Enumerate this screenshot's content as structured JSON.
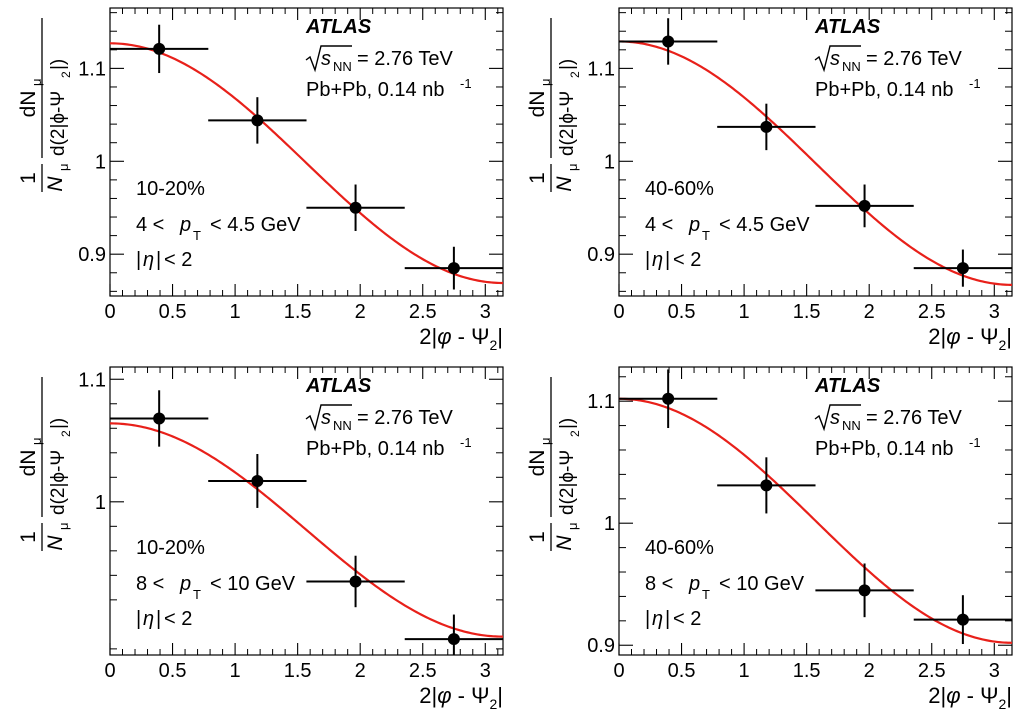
{
  "chart_data": [
    {
      "type": "scatter",
      "experiment": "ATLAS",
      "energy_label": "= 2.76 TeV",
      "energy_symbol_main": "s",
      "energy_symbol_sub": "NN",
      "collision_label": "Pb+Pb, 0.14 nb",
      "collision_sup": "-1",
      "centrality": "10-20%",
      "pt_lo": "4 <",
      "pt_hi": "< 4.5 GeV",
      "eta_cut": "< 2",
      "xlabel_pre": "2|",
      "xlabel_mid": " - Ψ",
      "xlabel_sub": "2",
      "xlim": [
        0,
        3.1416
      ],
      "ylim": [
        0.855,
        1.165
      ],
      "xticks": [
        0,
        0.5,
        1,
        1.5,
        2,
        2.5,
        3
      ],
      "xtick_labels": [
        "0",
        "0.5",
        "1",
        "1.5",
        "2",
        "2.5",
        "3"
      ],
      "yticks": [
        0.9,
        1.0,
        1.1
      ],
      "ytick_labels": [
        "0.9",
        "1",
        "1.1"
      ],
      "points": [
        {
          "x": 0.393,
          "y": 1.121,
          "xerr": 0.393,
          "yerr": 0.026
        },
        {
          "x": 1.178,
          "y": 1.044,
          "xerr": 0.393,
          "yerr": 0.025
        },
        {
          "x": 1.963,
          "y": 0.95,
          "xerr": 0.393,
          "yerr": 0.025
        },
        {
          "x": 2.749,
          "y": 0.885,
          "xerr": 0.393,
          "yerr": 0.023
        }
      ],
      "fit": {
        "c": 0.998,
        "a": 0.129,
        "color": "#e8201a"
      }
    },
    {
      "type": "scatter",
      "experiment": "ATLAS",
      "energy_label": "= 2.76 TeV",
      "energy_symbol_main": "s",
      "energy_symbol_sub": "NN",
      "collision_label": "Pb+Pb, 0.14 nb",
      "collision_sup": "-1",
      "centrality": "40-60%",
      "pt_lo": "4 <",
      "pt_hi": "< 4.5 GeV",
      "eta_cut": "< 2",
      "xlabel_pre": "2|",
      "xlabel_mid": " - Ψ",
      "xlabel_sub": "2",
      "xlim": [
        0,
        3.1416
      ],
      "ylim": [
        0.855,
        1.165
      ],
      "xticks": [
        0,
        0.5,
        1,
        1.5,
        2,
        2.5,
        3
      ],
      "xtick_labels": [
        "0",
        "0.5",
        "1",
        "1.5",
        "2",
        "2.5",
        "3"
      ],
      "yticks": [
        0.9,
        1.0,
        1.1
      ],
      "ytick_labels": [
        "0.9",
        "1",
        "1.1"
      ],
      "points": [
        {
          "x": 0.393,
          "y": 1.129,
          "xerr": 0.393,
          "yerr": 0.025
        },
        {
          "x": 1.178,
          "y": 1.037,
          "xerr": 0.393,
          "yerr": 0.025
        },
        {
          "x": 1.963,
          "y": 0.952,
          "xerr": 0.393,
          "yerr": 0.023
        },
        {
          "x": 2.749,
          "y": 0.885,
          "xerr": 0.393,
          "yerr": 0.02
        }
      ],
      "fit": {
        "c": 0.998,
        "a": 0.131,
        "color": "#e8201a"
      }
    },
    {
      "type": "scatter",
      "experiment": "ATLAS",
      "energy_label": "= 2.76 TeV",
      "energy_symbol_main": "s",
      "energy_symbol_sub": "NN",
      "collision_label": "Pb+Pb, 0.14 nb",
      "collision_sup": "-1",
      "centrality": "10-20%",
      "pt_lo": "8 <",
      "pt_hi": "< 10 GeV",
      "eta_cut": "< 2",
      "xlabel_pre": "2|",
      "xlabel_mid": " - Ψ",
      "xlabel_sub": "2",
      "xlim": [
        0,
        3.1416
      ],
      "ylim": [
        0.875,
        1.11
      ],
      "xticks": [
        0,
        0.5,
        1,
        1.5,
        2,
        2.5,
        3
      ],
      "xtick_labels": [
        "0",
        "0.5",
        "1",
        "1.5",
        "2",
        "2.5",
        "3"
      ],
      "yticks": [
        1.0,
        1.1
      ],
      "ytick_labels": [
        "1",
        "1.1"
      ],
      "points": [
        {
          "x": 0.393,
          "y": 1.068,
          "xerr": 0.393,
          "yerr": 0.023
        },
        {
          "x": 1.178,
          "y": 1.017,
          "xerr": 0.393,
          "yerr": 0.022
        },
        {
          "x": 1.963,
          "y": 0.935,
          "xerr": 0.393,
          "yerr": 0.021
        },
        {
          "x": 2.749,
          "y": 0.888,
          "xerr": 0.393,
          "yerr": 0.02
        }
      ],
      "fit": {
        "c": 0.977,
        "a": 0.087,
        "color": "#e8201a"
      }
    },
    {
      "type": "scatter",
      "experiment": "ATLAS",
      "energy_label": "= 2.76 TeV",
      "energy_symbol_main": "s",
      "energy_symbol_sub": "NN",
      "collision_label": "Pb+Pb, 0.14 nb",
      "collision_sup": "-1",
      "centrality": "40-60%",
      "pt_lo": "8 <",
      "pt_hi": "< 10 GeV",
      "eta_cut": "< 2",
      "xlabel_pre": "2|",
      "xlabel_mid": " - Ψ",
      "xlabel_sub": "2",
      "xlim": [
        0,
        3.1416
      ],
      "ylim": [
        0.892,
        1.128
      ],
      "xticks": [
        0,
        0.5,
        1,
        1.5,
        2,
        2.5,
        3
      ],
      "xtick_labels": [
        "0",
        "0.5",
        "1",
        "1.5",
        "2",
        "2.5",
        "3"
      ],
      "yticks": [
        0.9,
        1.0,
        1.1
      ],
      "ytick_labels": [
        "0.9",
        "1",
        "1.1"
      ],
      "points": [
        {
          "x": 0.393,
          "y": 1.102,
          "xerr": 0.393,
          "yerr": 0.024
        },
        {
          "x": 1.178,
          "y": 1.031,
          "xerr": 0.393,
          "yerr": 0.023
        },
        {
          "x": 1.963,
          "y": 0.945,
          "xerr": 0.393,
          "yerr": 0.022
        },
        {
          "x": 2.749,
          "y": 0.921,
          "xerr": 0.393,
          "yerr": 0.02
        }
      ],
      "fit": {
        "c": 1.002,
        "a": 0.1,
        "color": "#e8201a"
      }
    }
  ]
}
